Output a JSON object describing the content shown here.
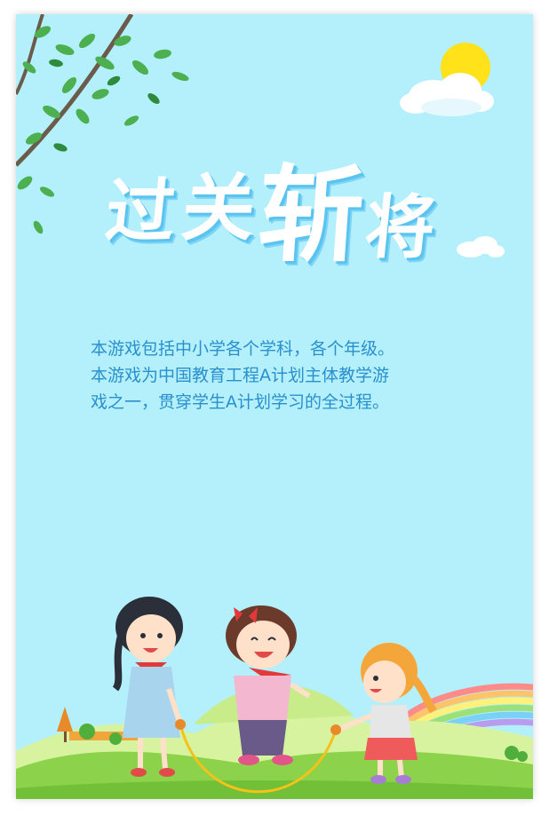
{
  "game": {
    "title_chars": [
      "过",
      "关",
      "斩",
      "将"
    ],
    "description_lines": [
      "本游戏包括中小学各个学科，各个年级。",
      "本游戏为中国教育工程A计划主体教学游",
      "戏之一，贯穿学生A计划学习的全过程。"
    ]
  },
  "colors": {
    "background": "#b3f0fb",
    "title_fill": "#ffffff",
    "title_shadow": "#59c4ef",
    "description_text": "#2a8fcd",
    "grass": "#8cd24a",
    "sun": "#ffe21a"
  },
  "icons": [
    "tree-branch-icon",
    "sun-icon",
    "cloud-icon",
    "rainbow-icon",
    "children-jumping-rope-icon"
  ]
}
